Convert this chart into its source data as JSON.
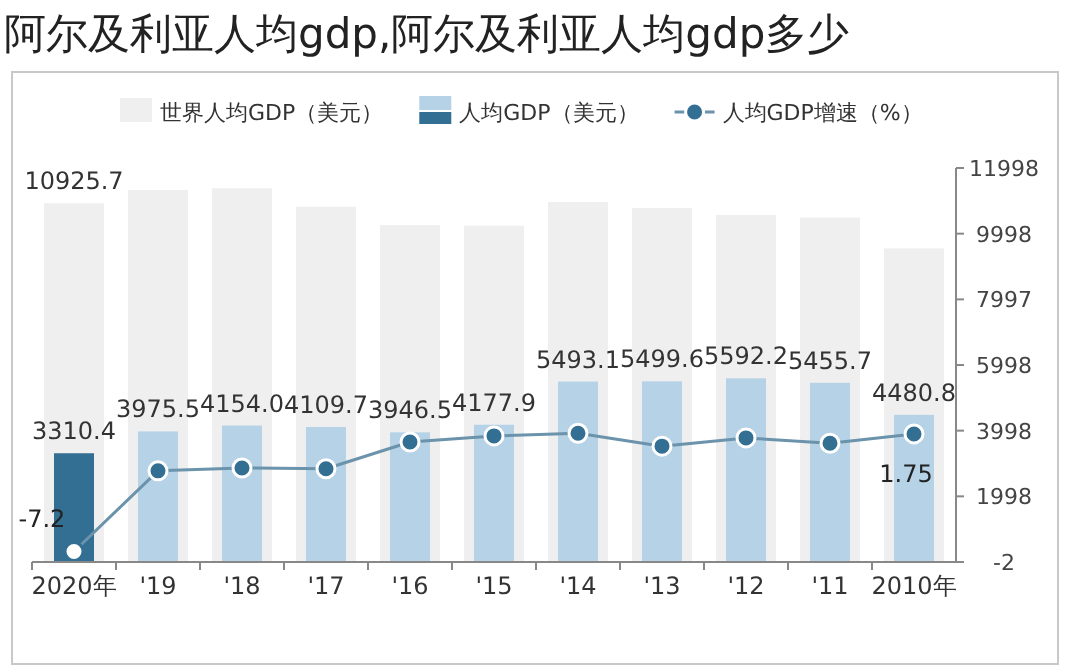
{
  "chart_data": {
    "type": "bar",
    "title": "阿尔及利亚人均gdp,阿尔及利亚人均gdp多少",
    "categories": [
      "2020年",
      "'19",
      "'18",
      "'17",
      "'16",
      "'15",
      "'14",
      "'13",
      "'12",
      "'11",
      "2010年"
    ],
    "series": [
      {
        "name": "世界人均GDP（美元）",
        "color": "#efefef",
        "values": [
          10925.7,
          11330,
          11380,
          10820,
          10260,
          10240,
          10960,
          10780,
          10570,
          10490,
          9550
        ],
        "value_labels": [
          "10925.7",
          null,
          null,
          null,
          null,
          null,
          null,
          null,
          null,
          null,
          null
        ]
      },
      {
        "name": "人均GDP（美元）",
        "colors": [
          "#336f93",
          "#b5d2e6",
          "#b5d2e6",
          "#b5d2e6",
          "#b5d2e6",
          "#b5d2e6",
          "#b5d2e6",
          "#b5d2e6",
          "#b5d2e6",
          "#b5d2e6",
          "#b5d2e6"
        ],
        "values": [
          3310.4,
          3975.5,
          4154.0,
          4109.7,
          3946.5,
          4177.9,
          5493.1,
          5499.6,
          5592.2,
          5455.7,
          4480.8
        ],
        "value_labels": [
          "3310.4",
          "3975.5",
          "4154.0",
          "4109.7",
          "3946.5",
          "4177.9",
          "5493.1",
          "5499.6",
          "5592.2",
          "5455.7",
          "4480.8"
        ]
      },
      {
        "name": "人均GDP增速（%）",
        "type": "line",
        "axis": "y2",
        "color": "#6b93ab",
        "marker": "circle",
        "values": [
          -7.2,
          -1.06,
          -0.84,
          -0.9,
          1.14,
          1.6,
          1.8,
          0.82,
          1.45,
          1.04,
          1.75
        ],
        "value_labels": [
          "-7.2",
          null,
          null,
          null,
          null,
          null,
          null,
          null,
          null,
          null,
          "1.75"
        ]
      }
    ],
    "ylim": [
      -2,
      11998
    ],
    "yticks": [
      -2,
      1998,
      3998,
      5998,
      7997,
      9998,
      11998
    ],
    "y2lim": [
      -8,
      22
    ],
    "legend": "top",
    "grid": false
  }
}
